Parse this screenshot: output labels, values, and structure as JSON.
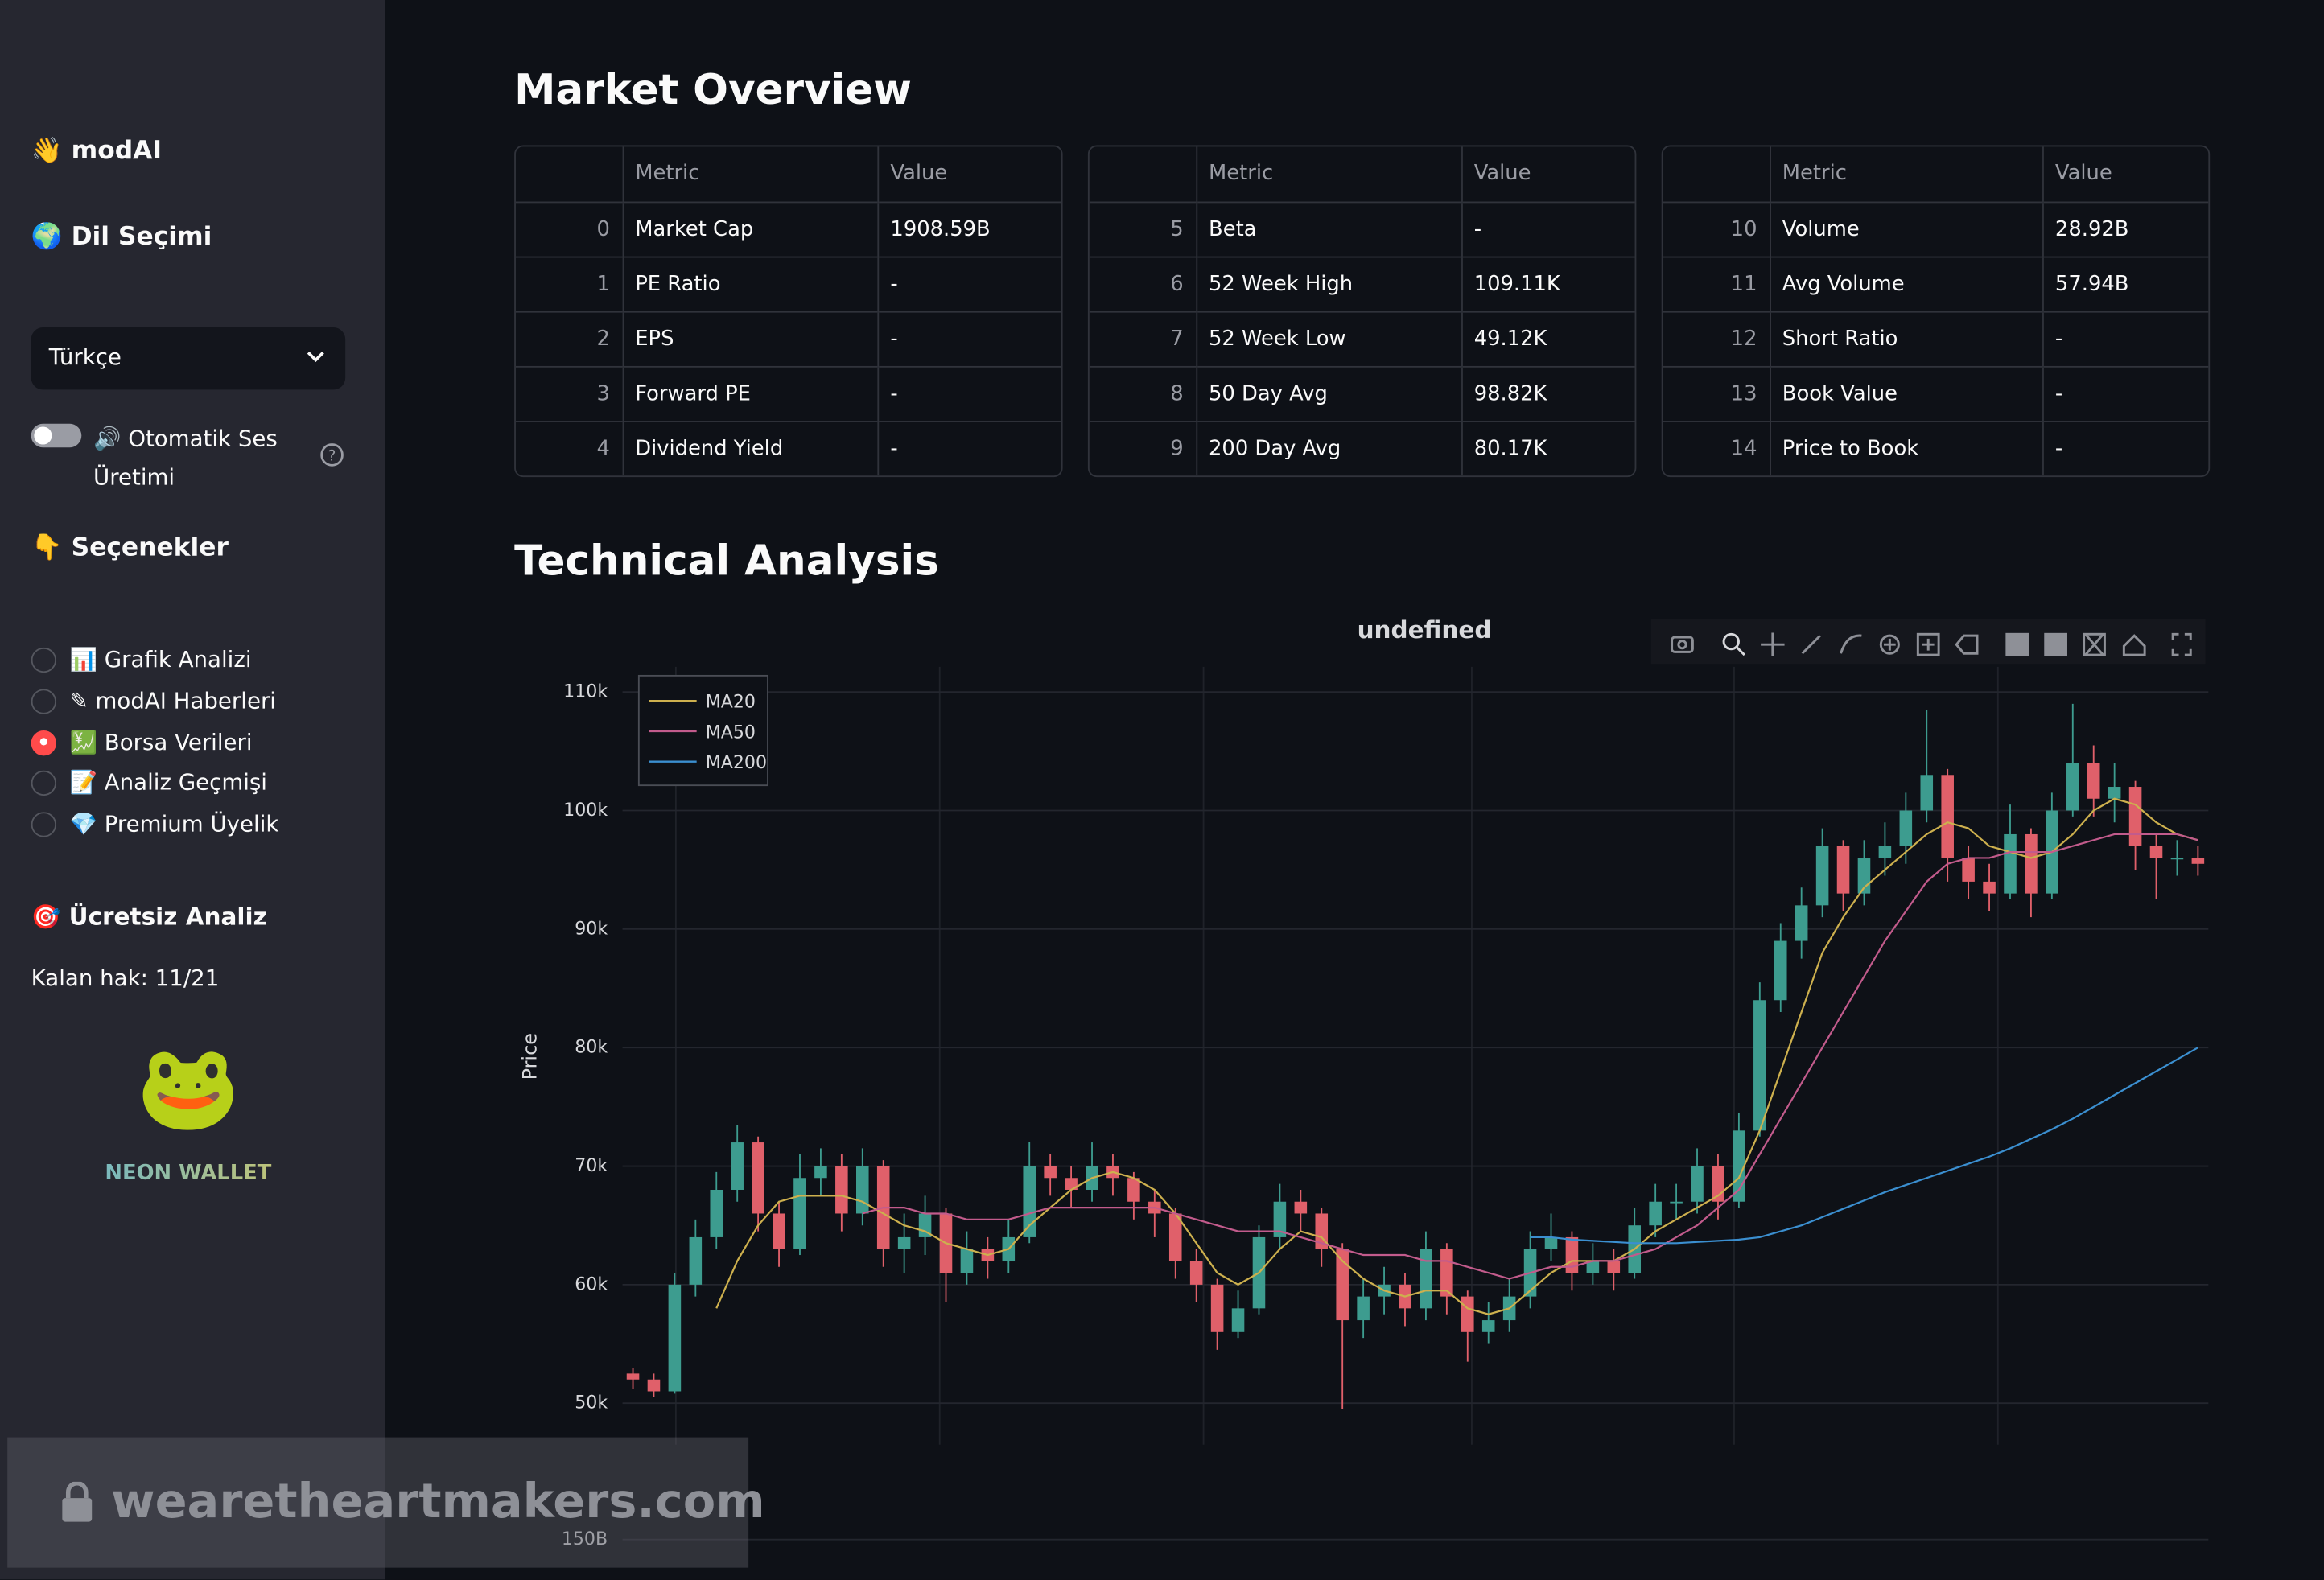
{
  "sidebar": {
    "brand": "👋 modAI",
    "language_heading": "🌍 Dil Seçimi",
    "language_select": "Türkçe",
    "toggle_label": "🔊 Otomatik Ses Üretimi",
    "options_heading": "👇 Seçenekler",
    "options": [
      "📊 Grafik Analizi",
      "✎ modAI Haberleri",
      "💹 Borsa Verileri",
      "📝 Analiz Geçmişi",
      "💎 Premium Üyelik"
    ],
    "selected_option": 2,
    "free_heading": "🎯 Ücretsiz Analiz",
    "remaining": "Kalan hak: 11/21",
    "wallet_icon": "🐸",
    "wallet": "NEON WALLET"
  },
  "main": {
    "overview_title": "Market Overview",
    "tables": [
      {
        "header": [
          "",
          "Metric",
          "Value"
        ],
        "rows": [
          [
            0,
            "Market Cap",
            "1908.59B"
          ],
          [
            1,
            "PE Ratio",
            "-"
          ],
          [
            2,
            "EPS",
            "-"
          ],
          [
            3,
            "Forward PE",
            "-"
          ],
          [
            4,
            "Dividend Yield",
            "-"
          ]
        ]
      },
      {
        "header": [
          "",
          "Metric",
          "Value"
        ],
        "rows": [
          [
            5,
            "Beta",
            "-"
          ],
          [
            6,
            "52 Week High",
            "109.11K"
          ],
          [
            7,
            "52 Week Low",
            "49.12K"
          ],
          [
            8,
            "50 Day Avg",
            "98.82K"
          ],
          [
            9,
            "200 Day Avg",
            "80.17K"
          ]
        ]
      },
      {
        "header": [
          "",
          "Metric",
          "Value"
        ],
        "rows": [
          [
            10,
            "Volume",
            "28.92B"
          ],
          [
            11,
            "Avg Volume",
            "57.94B"
          ],
          [
            12,
            "Short Ratio",
            "-"
          ],
          [
            13,
            "Book Value",
            "-"
          ],
          [
            14,
            "Price to Book",
            "-"
          ]
        ]
      }
    ],
    "technical_title": "Technical Analysis"
  },
  "watermark": "wearetheartmakers.com",
  "chart_data": [
    {
      "type": "candlestick",
      "title": "undefined",
      "y_label": "Price",
      "up_color": "#3d9c8f",
      "down_color": "#e0606a",
      "ylim": [
        46500,
        112000
      ],
      "yticks": [
        {
          "value": 50000,
          "label": "50k"
        },
        {
          "value": 60000,
          "label": "60k"
        },
        {
          "value": 70000,
          "label": "70k"
        },
        {
          "value": 80000,
          "label": "80k"
        },
        {
          "value": 90000,
          "label": "90k"
        },
        {
          "value": 100000,
          "label": "100k"
        },
        {
          "value": 110000,
          "label": "110k"
        }
      ],
      "grid": true,
      "legend": "top-left",
      "open": [
        52500,
        52000,
        51000,
        60000,
        64000,
        68000,
        72000,
        66000,
        63000,
        69000,
        70000,
        66000,
        70000,
        63000,
        64000,
        66000,
        61000,
        63000,
        62000,
        64000,
        70000,
        69000,
        68000,
        70000,
        69000,
        67000,
        66000,
        62000,
        60000,
        56000,
        58000,
        64000,
        67000,
        66000,
        63000,
        57000,
        59000,
        60000,
        58000,
        63000,
        59000,
        56000,
        57000,
        59000,
        63000,
        64000,
        61000,
        62000,
        61000,
        65000,
        67000,
        67000,
        70000,
        67000,
        73000,
        84000,
        89000,
        92000,
        97000,
        93000,
        96000,
        97000,
        100000,
        103000,
        96000,
        94000,
        93000,
        98000,
        93000,
        100000,
        104000,
        101000,
        102000,
        97000,
        96000,
        96000
      ],
      "high": [
        53000,
        52500,
        61000,
        65500,
        69500,
        73500,
        72500,
        67000,
        71000,
        71500,
        71000,
        71500,
        70500,
        66000,
        67500,
        66500,
        64500,
        64000,
        65500,
        72000,
        71000,
        70000,
        72000,
        71000,
        69500,
        68000,
        66500,
        63000,
        60500,
        59500,
        65000,
        68500,
        68000,
        66500,
        63500,
        60500,
        61500,
        61000,
        64500,
        63500,
        59500,
        58500,
        60500,
        64500,
        66000,
        64500,
        63500,
        63000,
        66500,
        68500,
        68500,
        71500,
        71000,
        74500,
        85500,
        90500,
        93500,
        98500,
        97500,
        97500,
        99000,
        101500,
        108500,
        103500,
        97000,
        95500,
        100500,
        98500,
        101500,
        109000,
        105500,
        104000,
        102500,
        98000,
        97500,
        97000
      ],
      "low": [
        51200,
        50500,
        50800,
        59000,
        63000,
        67000,
        64500,
        61500,
        62500,
        67500,
        64500,
        65000,
        61500,
        61000,
        62500,
        58500,
        60000,
        60500,
        61000,
        63500,
        67500,
        66500,
        67000,
        67500,
        65500,
        64000,
        60500,
        58500,
        54500,
        55500,
        57500,
        63000,
        64500,
        61500,
        49500,
        55500,
        57500,
        56500,
        57000,
        57500,
        53500,
        55000,
        56000,
        58000,
        62000,
        59500,
        60000,
        59500,
        60500,
        64000,
        65500,
        66000,
        65500,
        66500,
        72500,
        83000,
        87500,
        91000,
        91500,
        92000,
        94500,
        95500,
        99000,
        94000,
        92500,
        91500,
        92500,
        91000,
        92500,
        99500,
        99500,
        99000,
        95000,
        92500,
        94500,
        94500
      ],
      "close": [
        52000,
        51000,
        60000,
        64000,
        68000,
        72000,
        66000,
        63000,
        69000,
        70000,
        66000,
        70000,
        63000,
        64000,
        66000,
        61000,
        63000,
        62000,
        64000,
        70000,
        69000,
        68000,
        70000,
        69000,
        67000,
        66000,
        62000,
        60000,
        56000,
        58000,
        64000,
        67000,
        66000,
        63000,
        57000,
        59000,
        60000,
        58000,
        63000,
        59000,
        56000,
        57000,
        59000,
        63000,
        64000,
        61000,
        62000,
        61000,
        65000,
        67000,
        67000,
        70000,
        67000,
        73000,
        84000,
        89000,
        92000,
        97000,
        93000,
        96000,
        97000,
        100000,
        103000,
        96000,
        94000,
        93000,
        98000,
        93000,
        100000,
        104000,
        101000,
        102000,
        97000,
        96000,
        96000,
        95500
      ],
      "series": [
        {
          "name": "MA20",
          "color": "#cdb04e",
          "values": [
            null,
            null,
            null,
            null,
            58000,
            62000,
            65000,
            67000,
            67500,
            67500,
            67500,
            67000,
            66000,
            65000,
            64500,
            63500,
            63000,
            62500,
            63000,
            65000,
            66500,
            68000,
            69000,
            69500,
            69000,
            68000,
            66000,
            63500,
            61000,
            60000,
            61000,
            63000,
            64500,
            64000,
            62000,
            60500,
            59500,
            59000,
            59500,
            59500,
            58000,
            57500,
            58000,
            59500,
            61000,
            62000,
            62000,
            62000,
            63000,
            64500,
            65500,
            66500,
            67500,
            69000,
            73000,
            78000,
            83000,
            88000,
            91000,
            93500,
            95000,
            96500,
            98000,
            99000,
            98500,
            97000,
            96500,
            96000,
            96500,
            98000,
            100000,
            101000,
            100500,
            99000,
            98000,
            97500
          ]
        },
        {
          "name": "MA50",
          "color": "#c25b8c",
          "values": [
            null,
            null,
            null,
            null,
            null,
            null,
            null,
            null,
            null,
            null,
            null,
            66000,
            66500,
            66500,
            66000,
            66000,
            65500,
            65500,
            65500,
            66000,
            66500,
            66500,
            66500,
            66500,
            66500,
            66500,
            66000,
            65500,
            65000,
            64500,
            64500,
            64500,
            64000,
            63500,
            63000,
            62500,
            62500,
            62500,
            62000,
            62000,
            61500,
            61000,
            60500,
            61000,
            61500,
            61500,
            62000,
            62000,
            62500,
            63000,
            64000,
            65000,
            66500,
            68000,
            71000,
            74000,
            77000,
            80000,
            83000,
            86000,
            89000,
            91500,
            94000,
            95500,
            96000,
            96000,
            96500,
            96500,
            96500,
            97000,
            97500,
            98000,
            98000,
            98000,
            98000,
            97500
          ]
        },
        {
          "name": "MA200",
          "color": "#3b8fd0",
          "values": [
            null,
            null,
            null,
            null,
            null,
            null,
            null,
            null,
            null,
            null,
            null,
            null,
            null,
            null,
            null,
            null,
            null,
            null,
            null,
            null,
            null,
            null,
            null,
            null,
            null,
            null,
            null,
            null,
            null,
            null,
            null,
            null,
            null,
            null,
            null,
            null,
            null,
            null,
            null,
            null,
            null,
            null,
            null,
            64000,
            64000,
            63800,
            63700,
            63600,
            63500,
            63500,
            63500,
            63600,
            63700,
            63800,
            64000,
            64500,
            65000,
            65700,
            66400,
            67100,
            67800,
            68400,
            69000,
            69600,
            70200,
            70800,
            71500,
            72300,
            73100,
            74000,
            75000,
            76000,
            77000,
            78000,
            79000,
            80000
          ]
        }
      ]
    },
    {
      "type": "bar",
      "ylim": [
        0,
        160000000000
      ],
      "yticks": [
        {
          "value": 150000000000,
          "label": "150B"
        }
      ],
      "grid": true
    }
  ]
}
